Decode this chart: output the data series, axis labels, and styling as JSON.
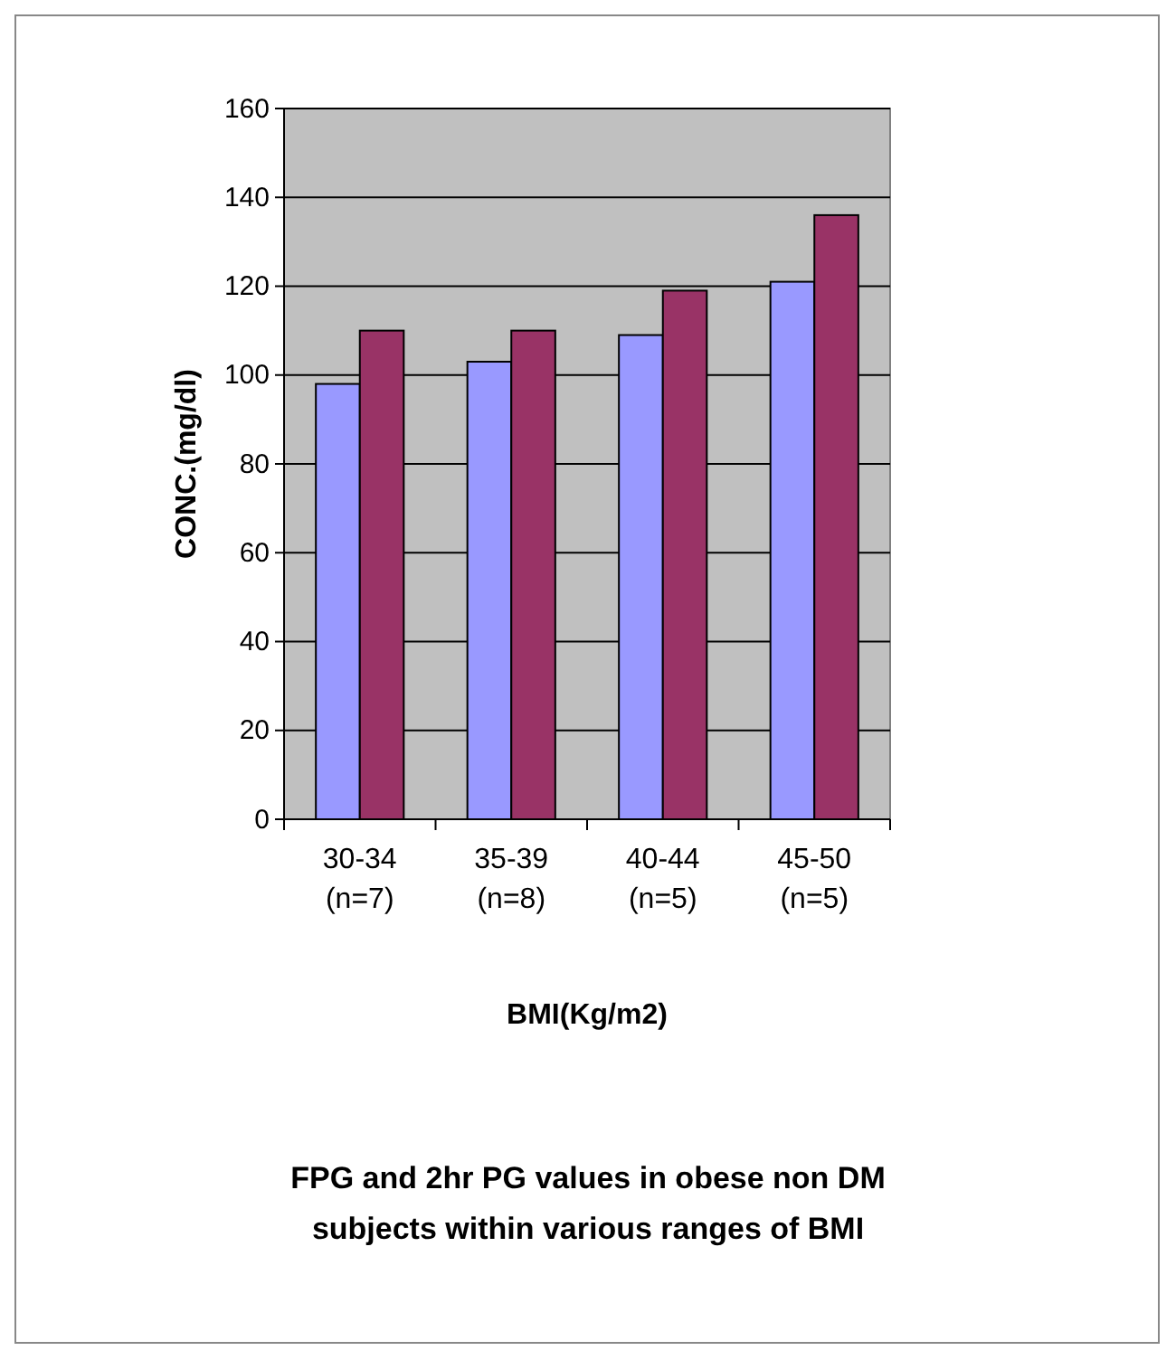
{
  "chart_data": {
    "type": "bar",
    "title": "FPG and 2hr PG values in obese non DM subjects within various ranges of BMI",
    "xlabel": "BMI(Kg/m2)",
    "ylabel": "CONC.(mg/dl)",
    "categories": [
      "30-34\n(n=7)",
      "35-39\n(n=8)",
      "40-44\n(n=5)",
      "45-50\n(n=5)"
    ],
    "series": [
      {
        "color": "#9999ff",
        "values": [
          98,
          103,
          109,
          121
        ]
      },
      {
        "color": "#993366",
        "values": [
          110,
          110,
          119,
          136
        ]
      }
    ],
    "ylim": [
      0,
      160
    ],
    "yticks": [
      0,
      20,
      40,
      60,
      80,
      100,
      120,
      140,
      160
    ],
    "grid": "y"
  }
}
